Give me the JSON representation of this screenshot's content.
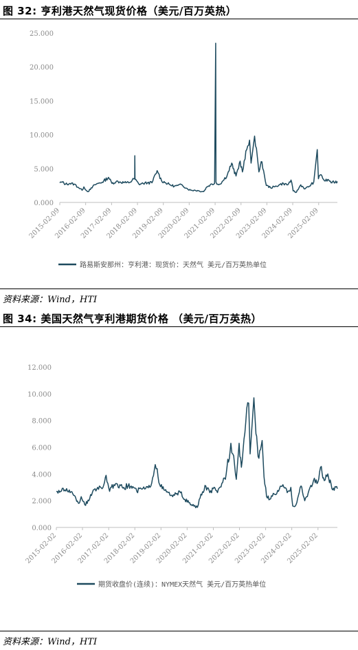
{
  "figures": [
    {
      "title": "图 32:  亨利港天然气现货价格（美元/百万英热）",
      "source": "资料来源：Wind，HTI"
    },
    {
      "title": "图 34:  美国天然气亨利港期货价格 （美元/百万英热）",
      "source": "资料来源：Wind，HTI"
    }
  ],
  "colors": {
    "series": "#1d4a5e",
    "axis": "#bfbfbf",
    "tick_text": "#8a8a8a"
  },
  "chart_data": [
    {
      "type": "line",
      "title": "",
      "xlabel": "",
      "ylabel": "",
      "ylim": [
        0,
        25
      ],
      "y_ticks": [
        0,
        5,
        10,
        15,
        20,
        25
      ],
      "y_tick_labels": [
        "0.000",
        "5.000",
        "10.000",
        "15.000",
        "20.000",
        "25.000"
      ],
      "x_range": [
        "2015-02-09",
        "2025-10-31"
      ],
      "x_ticks": [
        "2015-02-09",
        "2016-02-09",
        "2017-02-09",
        "2018-02-09",
        "2019-02-09",
        "2020-02-09",
        "2021-02-09",
        "2022-02-09",
        "2023-02-09",
        "2024-02-09",
        "2025-02-09"
      ],
      "legend": "bottom",
      "grid": false,
      "series": [
        {
          "name": "路易斯安那州：亨利港：现货价：天然气   美元/百万英热单位",
          "points": [
            [
              "2015-02-09",
              2.9
            ],
            [
              "2015-03-15",
              3.0
            ],
            [
              "2015-05-01",
              2.7
            ],
            [
              "2015-07-01",
              2.8
            ],
            [
              "2015-09-01",
              2.7
            ],
            [
              "2015-11-01",
              2.2
            ],
            [
              "2015-12-20",
              1.8
            ],
            [
              "2016-01-15",
              2.3
            ],
            [
              "2016-03-05",
              1.6
            ],
            [
              "2016-04-15",
              1.9
            ],
            [
              "2016-06-15",
              2.6
            ],
            [
              "2016-08-01",
              2.8
            ],
            [
              "2016-10-01",
              3.0
            ],
            [
              "2016-12-28",
              3.7
            ],
            [
              "2017-02-15",
              2.8
            ],
            [
              "2017-04-15",
              3.1
            ],
            [
              "2017-06-15",
              3.0
            ],
            [
              "2017-09-01",
              2.9
            ],
            [
              "2017-11-01",
              3.0
            ],
            [
              "2018-01-01",
              3.6
            ],
            [
              "2018-01-03",
              6.9
            ],
            [
              "2018-01-06",
              3.4
            ],
            [
              "2018-03-01",
              2.7
            ],
            [
              "2018-05-01",
              2.8
            ],
            [
              "2018-07-01",
              2.9
            ],
            [
              "2018-09-01",
              2.9
            ],
            [
              "2018-11-14",
              4.7
            ],
            [
              "2018-12-01",
              4.3
            ],
            [
              "2019-01-15",
              3.2
            ],
            [
              "2019-03-15",
              2.9
            ],
            [
              "2019-05-15",
              2.6
            ],
            [
              "2019-07-15",
              2.4
            ],
            [
              "2019-09-01",
              2.5
            ],
            [
              "2019-11-01",
              2.6
            ],
            [
              "2020-01-01",
              2.1
            ],
            [
              "2020-03-01",
              1.8
            ],
            [
              "2020-05-01",
              1.8
            ],
            [
              "2020-07-01",
              1.7
            ],
            [
              "2020-09-01",
              1.6
            ],
            [
              "2020-10-15",
              2.3
            ],
            [
              "2020-12-01",
              2.6
            ],
            [
              "2021-02-01",
              2.8
            ],
            [
              "2021-02-17",
              23.5
            ],
            [
              "2021-02-21",
              3.0
            ],
            [
              "2021-04-01",
              2.6
            ],
            [
              "2021-06-01",
              3.2
            ],
            [
              "2021-08-01",
              4.1
            ],
            [
              "2021-10-01",
              5.8
            ],
            [
              "2021-10-20",
              5.0
            ],
            [
              "2021-12-01",
              3.9
            ],
            [
              "2022-01-28",
              6.1
            ],
            [
              "2022-03-01",
              4.5
            ],
            [
              "2022-05-01",
              7.8
            ],
            [
              "2022-06-10",
              9.2
            ],
            [
              "2022-07-01",
              5.8
            ],
            [
              "2022-08-20",
              9.8
            ],
            [
              "2022-09-15",
              8.0
            ],
            [
              "2022-10-20",
              4.5
            ],
            [
              "2022-12-01",
              6.0
            ],
            [
              "2023-01-05",
              4.0
            ],
            [
              "2023-02-01",
              2.5
            ],
            [
              "2023-04-01",
              2.2
            ],
            [
              "2023-06-01",
              2.3
            ],
            [
              "2023-08-01",
              2.6
            ],
            [
              "2023-10-01",
              2.8
            ],
            [
              "2023-12-01",
              2.6
            ],
            [
              "2024-01-16",
              3.3
            ],
            [
              "2024-02-15",
              1.7
            ],
            [
              "2024-04-01",
              1.5
            ],
            [
              "2024-06-01",
              2.6
            ],
            [
              "2024-08-01",
              2.0
            ],
            [
              "2024-10-01",
              2.4
            ],
            [
              "2024-12-01",
              3.0
            ],
            [
              "2025-01-20",
              7.8
            ],
            [
              "2025-02-05",
              3.5
            ],
            [
              "2025-03-15",
              4.1
            ],
            [
              "2025-05-01",
              3.2
            ],
            [
              "2025-07-01",
              3.3
            ],
            [
              "2025-08-15",
              2.9
            ],
            [
              "2025-10-31",
              3.1
            ]
          ]
        }
      ]
    },
    {
      "type": "line",
      "title": "",
      "xlabel": "",
      "ylabel": "",
      "ylim": [
        0,
        12
      ],
      "y_ticks": [
        0,
        2,
        4,
        6,
        8,
        10,
        12
      ],
      "y_tick_labels": [
        "0.000",
        "2.000",
        "4.000",
        "6.000",
        "8.000",
        "10.000",
        "12.000"
      ],
      "x_range": [
        "2015-02-02",
        "2025-10-31"
      ],
      "x_ticks": [
        "2015-02-02",
        "2016-02-02",
        "2017-02-02",
        "2018-02-02",
        "2019-02-02",
        "2020-02-02",
        "2021-02-02",
        "2022-02-02",
        "2023-02-02",
        "2024-02-02",
        "2025-02-02"
      ],
      "legend": "bottom",
      "grid": false,
      "series": [
        {
          "name": "期货收盘价(连续)：NYMEX天然气   美元/百万英热单位",
          "points": [
            [
              "2015-02-02",
              2.7
            ],
            [
              "2015-04-01",
              2.7
            ],
            [
              "2015-06-01",
              2.8
            ],
            [
              "2015-08-01",
              2.8
            ],
            [
              "2015-10-01",
              2.4
            ],
            [
              "2015-12-15",
              1.8
            ],
            [
              "2016-01-15",
              2.3
            ],
            [
              "2016-03-05",
              1.7
            ],
            [
              "2016-05-01",
              2.0
            ],
            [
              "2016-07-01",
              2.8
            ],
            [
              "2016-09-01",
              3.0
            ],
            [
              "2016-11-01",
              2.9
            ],
            [
              "2016-12-28",
              3.9
            ],
            [
              "2017-02-15",
              2.7
            ],
            [
              "2017-04-15",
              3.2
            ],
            [
              "2017-06-15",
              3.0
            ],
            [
              "2017-09-01",
              3.0
            ],
            [
              "2017-11-01",
              3.1
            ],
            [
              "2018-01-15",
              3.0
            ],
            [
              "2018-03-01",
              2.7
            ],
            [
              "2018-05-01",
              2.9
            ],
            [
              "2018-07-01",
              2.9
            ],
            [
              "2018-09-01",
              3.0
            ],
            [
              "2018-11-14",
              4.7
            ],
            [
              "2018-12-10",
              4.4
            ],
            [
              "2019-01-15",
              3.2
            ],
            [
              "2019-03-15",
              2.8
            ],
            [
              "2019-05-15",
              2.6
            ],
            [
              "2019-07-15",
              2.3
            ],
            [
              "2019-09-01",
              2.5
            ],
            [
              "2019-11-01",
              2.6
            ],
            [
              "2020-01-01",
              2.1
            ],
            [
              "2020-04-01",
              1.7
            ],
            [
              "2020-06-25",
              1.5
            ],
            [
              "2020-08-01",
              2.2
            ],
            [
              "2020-10-20",
              3.1
            ],
            [
              "2020-12-15",
              2.6
            ],
            [
              "2021-02-01",
              2.9
            ],
            [
              "2021-04-01",
              2.6
            ],
            [
              "2021-06-01",
              3.3
            ],
            [
              "2021-08-01",
              4.0
            ],
            [
              "2021-10-05",
              6.3
            ],
            [
              "2021-11-01",
              5.5
            ],
            [
              "2021-12-20",
              3.6
            ],
            [
              "2022-01-28",
              6.3
            ],
            [
              "2022-03-01",
              4.5
            ],
            [
              "2022-05-01",
              7.9
            ],
            [
              "2022-06-10",
              9.3
            ],
            [
              "2022-07-01",
              5.5
            ],
            [
              "2022-08-22",
              9.7
            ],
            [
              "2022-09-20",
              7.0
            ],
            [
              "2022-10-20",
              5.3
            ],
            [
              "2022-12-15",
              6.5
            ],
            [
              "2023-01-10",
              3.8
            ],
            [
              "2023-02-15",
              2.3
            ],
            [
              "2023-04-01",
              2.1
            ],
            [
              "2023-06-01",
              2.5
            ],
            [
              "2023-08-01",
              2.7
            ],
            [
              "2023-10-01",
              3.2
            ],
            [
              "2023-12-01",
              2.6
            ],
            [
              "2024-01-20",
              3.0
            ],
            [
              "2024-02-15",
              1.6
            ],
            [
              "2024-04-01",
              1.7
            ],
            [
              "2024-06-10",
              3.1
            ],
            [
              "2024-08-01",
              2.0
            ],
            [
              "2024-10-01",
              2.8
            ],
            [
              "2024-12-01",
              3.5
            ],
            [
              "2025-02-01",
              3.4
            ],
            [
              "2025-03-10",
              4.5
            ],
            [
              "2025-05-01",
              3.5
            ],
            [
              "2025-06-20",
              4.0
            ],
            [
              "2025-08-15",
              2.9
            ],
            [
              "2025-10-31",
              2.9
            ]
          ]
        }
      ]
    }
  ]
}
